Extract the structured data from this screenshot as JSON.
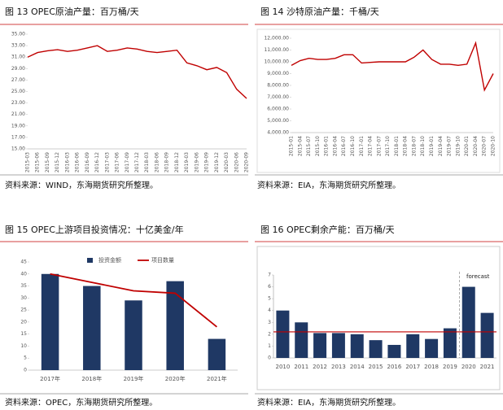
{
  "chart_data": [
    {
      "type": "line",
      "title": "图 13  OPEC原油产量：百万桶/天",
      "color": "#c00000",
      "categories": [
        "2015-03",
        "2015-06",
        "2015-09",
        "2015-12",
        "2016-03",
        "2016-06",
        "2016-09",
        "2016-12",
        "2017-03",
        "2017-06",
        "2017-09",
        "2017-12",
        "2018-03",
        "2018-06",
        "2018-09",
        "2018-12",
        "2019-03",
        "2019-06",
        "2019-09",
        "2019-12",
        "2020-03",
        "2020-06",
        "2020-09"
      ],
      "values": [
        31.0,
        31.8,
        32.1,
        32.3,
        32.0,
        32.2,
        32.6,
        33.0,
        32.0,
        32.2,
        32.6,
        32.4,
        32.0,
        31.8,
        32.0,
        32.2,
        30.0,
        29.5,
        28.8,
        29.2,
        28.3,
        25.4,
        23.8
      ],
      "ylim": [
        15,
        35
      ],
      "yticks": [
        {
          "value": 15,
          "label": "15.00"
        },
        {
          "value": 17,
          "label": "17.00"
        },
        {
          "value": 19,
          "label": "19.00"
        },
        {
          "value": 21,
          "label": "21.00"
        },
        {
          "value": 23,
          "label": "23.00"
        },
        {
          "value": 25,
          "label": "25.00"
        },
        {
          "value": 27,
          "label": "27.00"
        },
        {
          "value": 29,
          "label": "29.00"
        },
        {
          "value": 31,
          "label": "31.00"
        },
        {
          "value": 33,
          "label": "33.00"
        },
        {
          "value": 35,
          "label": "35.00"
        }
      ],
      "grid": false
    },
    {
      "type": "line",
      "title": "图 14  沙特原油产量：千桶/天",
      "color": "#c00000",
      "categories": [
        "2015-01",
        "2015-04",
        "2015-07",
        "2015-10",
        "2016-01",
        "2016-04",
        "2016-07",
        "2016-10",
        "2017-01",
        "2017-04",
        "2017-07",
        "2017-10",
        "2018-01",
        "2018-04",
        "2018-07",
        "2018-10",
        "2019-01",
        "2019-04",
        "2019-07",
        "2019-10",
        "2020-01",
        "2020-04",
        "2020-07",
        "2020-10"
      ],
      "values": [
        9700,
        10100,
        10300,
        10200,
        10200,
        10300,
        10600,
        10600,
        9900,
        9950,
        10000,
        10000,
        10000,
        10000,
        10400,
        11000,
        10200,
        9800,
        9800,
        9700,
        9800,
        11600,
        7600,
        9000
      ],
      "ylim": [
        4000,
        12000
      ],
      "yticks": [
        {
          "value": 4000,
          "label": "4,000.00"
        },
        {
          "value": 5000,
          "label": "5,000.00"
        },
        {
          "value": 6000,
          "label": "6,000.00"
        },
        {
          "value": 7000,
          "label": "7,000.00"
        },
        {
          "value": 8000,
          "label": "8,000.00"
        },
        {
          "value": 9000,
          "label": "9,000.00"
        },
        {
          "value": 10000,
          "label": "10,000.00"
        },
        {
          "value": 11000,
          "label": "11,000.00"
        },
        {
          "value": 12000,
          "label": "12,000.00"
        }
      ],
      "grid": false
    },
    {
      "type": "bar",
      "title": "图 15  OPEC上游项目投资情况：十亿美金/年",
      "categories": [
        "2017年",
        "2018年",
        "2019年",
        "2020年",
        "2021年"
      ],
      "series": [
        {
          "name": "投资金额",
          "color": "#1f3864",
          "chart": "bar",
          "values": [
            40,
            35,
            29,
            37,
            13
          ]
        },
        {
          "name": "项目数量",
          "color": "#c00000",
          "chart": "line",
          "values": [
            40,
            36.5,
            33,
            32,
            18
          ]
        }
      ],
      "ylim": [
        0,
        45
      ],
      "yticks": [
        0,
        5,
        10,
        15,
        20,
        25,
        30,
        35,
        40,
        45
      ],
      "legend": "top",
      "grid": false
    },
    {
      "type": "bar",
      "title": "图 16  OPEC剩余产能：百万桶/天",
      "categories": [
        "2010",
        "2011",
        "2012",
        "2013",
        "2014",
        "2015",
        "2016",
        "2017",
        "2018",
        "2019",
        "2020",
        "2021"
      ],
      "series": [
        {
          "name": null,
          "color": "#1f3864",
          "chart": "bar",
          "values": [
            4,
            3,
            2.1,
            2.1,
            2,
            1.5,
            1.1,
            2,
            1.6,
            2.5,
            6,
            3.8
          ]
        }
      ],
      "reference_line": {
        "value": 2.2,
        "color": "#c00000"
      },
      "annotation": "forecast",
      "forecast_start": "2020",
      "ylim": [
        0,
        7
      ],
      "yticks": [
        0,
        1,
        2,
        3,
        4,
        5,
        6,
        7
      ],
      "grid": false
    }
  ],
  "sources": [
    "资料来源：WIND，东海期货研究所整理。",
    "资料来源：EIA，东海期货研究所整理。",
    "资料来源：OPEC，东海期货研究所整理。",
    "资料来源：EIA，东海期货研究所整理。"
  ]
}
